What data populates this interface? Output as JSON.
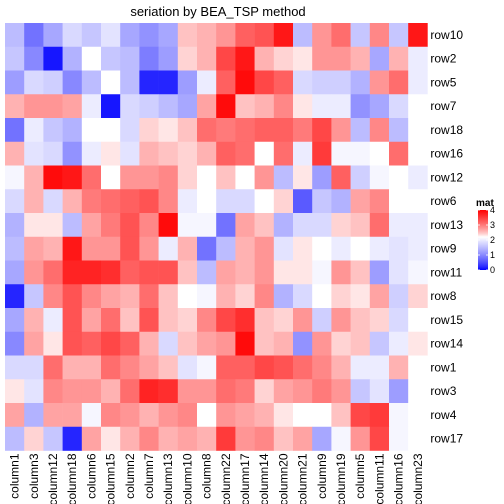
{
  "chart_data": {
    "type": "heatmap",
    "title": "seriation by BEA_TSP method",
    "rows": [
      "row10",
      "row2",
      "row5",
      "row7",
      "row18",
      "row16",
      "row12",
      "row6",
      "row13",
      "row9",
      "row11",
      "row8",
      "row15",
      "row14",
      "row1",
      "row3",
      "row4",
      "row17"
    ],
    "columns": [
      "column1",
      "column3",
      "column12",
      "column18",
      "column6",
      "column15",
      "column2",
      "column7",
      "column13",
      "column10",
      "column8",
      "column22",
      "column17",
      "column14",
      "column20",
      "column21",
      "column9",
      "column19",
      "column5",
      "column11",
      "column16",
      "column23"
    ],
    "values": [
      [
        1.5,
        0.8,
        1.3,
        1.8,
        1.6,
        1.9,
        1.3,
        1.1,
        1.3,
        2.5,
        2.6,
        2.8,
        3.2,
        3.3,
        3.8,
        1.5,
        2.8,
        3.1,
        1.6,
        2.9,
        1.6,
        3.8
      ],
      [
        1.6,
        1.0,
        0.1,
        1.4,
        2.2,
        1.6,
        1.5,
        0.9,
        1.2,
        2.4,
        2.6,
        3.4,
        3.8,
        2.6,
        2.4,
        2.3,
        2.8,
        2.8,
        2.6,
        1.3,
        2.6,
        2.0
      ],
      [
        1.2,
        1.8,
        1.7,
        1.0,
        1.5,
        2.2,
        1.5,
        0.2,
        0.2,
        1.2,
        2.0,
        3.2,
        3.9,
        3.4,
        3.2,
        1.8,
        1.7,
        1.7,
        1.4,
        2.8,
        3.1,
        2.0
      ],
      [
        2.6,
        2.8,
        2.8,
        2.7,
        2.0,
        0.1,
        1.8,
        1.7,
        1.5,
        1.3,
        2.7,
        3.9,
        2.5,
        2.6,
        2.9,
        2.3,
        2.0,
        2.0,
        1.1,
        1.3,
        1.8,
        2.2
      ],
      [
        0.8,
        2.0,
        1.6,
        1.4,
        2.2,
        2.2,
        1.8,
        2.4,
        2.3,
        2.5,
        3.1,
        3.0,
        3.1,
        3.2,
        3.2,
        3.0,
        3.4,
        2.8,
        1.5,
        2.9,
        1.5,
        2.2
      ],
      [
        2.6,
        1.9,
        1.8,
        1.1,
        2.0,
        2.3,
        1.9,
        2.6,
        2.5,
        2.4,
        2.6,
        3.2,
        3.1,
        2.2,
        3.1,
        2.0,
        3.5,
        2.1,
        2.1,
        2.2,
        3.1,
        2.2
      ],
      [
        2.1,
        2.6,
        3.9,
        3.8,
        3.1,
        2.2,
        2.8,
        2.8,
        2.9,
        2.4,
        2.2,
        2.5,
        2.2,
        2.8,
        1.5,
        2.3,
        1.2,
        3.2,
        1.7,
        2.1,
        2.2,
        2.0
      ],
      [
        1.8,
        2.6,
        1.8,
        2.6,
        3.0,
        3.1,
        3.2,
        3.3,
        2.9,
        2.0,
        2.2,
        1.8,
        1.8,
        2.2,
        2.4,
        0.6,
        1.6,
        1.4,
        2.7,
        2.9,
        2.2,
        2.2
      ],
      [
        1.4,
        2.3,
        2.3,
        1.5,
        2.7,
        3.0,
        3.3,
        2.9,
        3.9,
        2.1,
        2.1,
        0.8,
        2.7,
        2.5,
        1.4,
        1.8,
        1.8,
        2.4,
        2.5,
        3.1,
        2.0,
        2.0
      ],
      [
        1.5,
        2.7,
        2.6,
        3.8,
        2.8,
        2.8,
        3.3,
        2.8,
        2.0,
        2.6,
        0.8,
        1.5,
        2.6,
        2.8,
        1.9,
        2.3,
        2.2,
        2.0,
        2.2,
        2.0,
        1.9,
        2.0
      ],
      [
        1.3,
        2.8,
        3.1,
        3.7,
        3.7,
        3.6,
        3.2,
        3.3,
        3.3,
        2.5,
        1.5,
        2.7,
        2.6,
        2.8,
        2.3,
        2.3,
        2.1,
        2.8,
        2.5,
        1.2,
        1.9,
        2.1
      ],
      [
        0.2,
        1.6,
        2.9,
        3.3,
        2.9,
        2.7,
        2.6,
        3.1,
        2.5,
        2.2,
        2.1,
        2.6,
        2.4,
        2.9,
        1.4,
        1.8,
        2.2,
        2.4,
        2.3,
        2.7,
        1.7,
        2.4
      ],
      [
        1.3,
        2.6,
        2.0,
        3.3,
        2.7,
        3.1,
        2.5,
        3.3,
        2.5,
        2.4,
        2.9,
        3.4,
        3.6,
        2.5,
        2.4,
        2.8,
        1.7,
        2.8,
        2.5,
        2.4,
        1.8,
        2.2
      ],
      [
        1.0,
        2.7,
        2.3,
        3.3,
        3.2,
        3.4,
        3.2,
        2.6,
        1.8,
        2.5,
        2.7,
        2.8,
        3.9,
        2.5,
        2.6,
        1.1,
        2.8,
        2.4,
        2.5,
        1.6,
        2.0,
        2.3
      ],
      [
        1.8,
        1.8,
        3.1,
        2.6,
        2.6,
        3.1,
        2.9,
        2.7,
        2.5,
        1.9,
        2.1,
        3.2,
        3.2,
        3.4,
        3.3,
        3.1,
        2.9,
        2.6,
        2.0,
        2.0,
        2.6,
        2.2
      ],
      [
        2.3,
        1.9,
        2.9,
        2.8,
        2.8,
        2.6,
        3.1,
        3.7,
        3.6,
        2.8,
        2.8,
        3.1,
        3.0,
        2.4,
        2.7,
        2.8,
        3.0,
        2.8,
        1.6,
        1.9,
        1.2,
        2.2
      ],
      [
        2.7,
        1.4,
        2.7,
        2.7,
        2.1,
        2.9,
        2.8,
        2.6,
        2.8,
        2.9,
        2.2,
        2.8,
        2.7,
        2.6,
        2.3,
        2.2,
        2.2,
        2.5,
        3.4,
        3.5,
        2.1,
        2.2
      ],
      [
        1.5,
        2.4,
        1.6,
        0.2,
        2.7,
        2.3,
        2.6,
        2.9,
        2.6,
        2.7,
        2.6,
        3.5,
        2.8,
        2.9,
        2.5,
        2.7,
        1.3,
        2.1,
        2.8,
        3.4,
        2.1,
        2.2
      ]
    ],
    "color_scale": {
      "low": "#0000ff",
      "mid": "#ffffff",
      "high": "#ff0000",
      "min": 0,
      "midpoint": 2.2,
      "max": 4
    },
    "legend": {
      "title": "mat",
      "ticks": [
        "0",
        "1",
        "2",
        "3",
        "4"
      ],
      "tick_values": [
        0,
        1,
        2,
        3,
        4
      ],
      "position": "right"
    }
  }
}
